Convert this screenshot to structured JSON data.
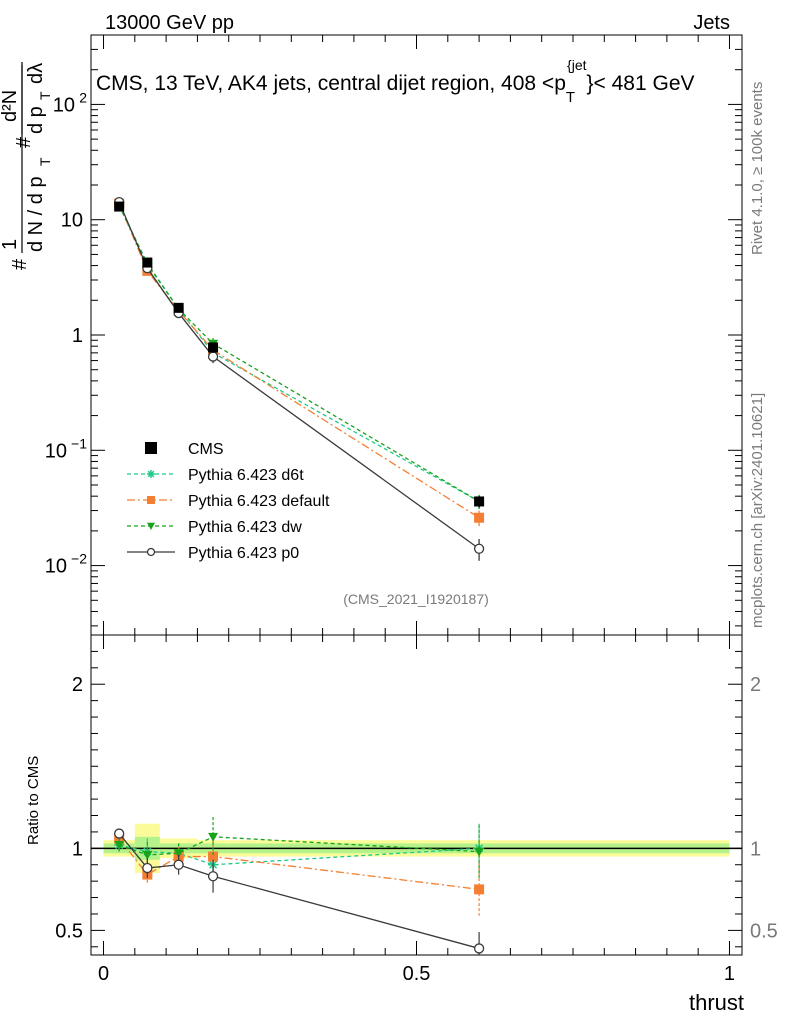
{
  "header": {
    "energy_label": "13000 GeV pp",
    "category_label": "Jets",
    "title": "CMS, 13 TeV, AK4 jets, central dijet region, 408 <p",
    "title_sub": "T",
    "title_sup": "{jet",
    "title_tail": "}< 481 GeV",
    "rivet_label": "Rivet 4.1.0, ≥ 100k events",
    "source_label": "mcplots.cern.ch [arXiv:2401.10621]",
    "analysis_id": "(CMS_2021_I1920187)"
  },
  "chart_data": {
    "type": "line",
    "xlabel": "thrust",
    "ylabel_main": "# 1/(dN/dpT) # d²N/(dpT dλ)",
    "ylabel_ratio": "Ratio to CMS",
    "xlim": [
      -0.02,
      1.02
    ],
    "ylim_main": [
      0.0025,
      400
    ],
    "yscale_main": "log",
    "ylim_ratio": [
      0.35,
      2.3
    ],
    "x_ticks": [
      "0",
      "0.5",
      "1"
    ],
    "x_tick_values": [
      0,
      0.5,
      1
    ],
    "main_y_ticks": [
      {
        "value": 0.01,
        "base": "10",
        "exp": "−2"
      },
      {
        "value": 0.1,
        "base": "10",
        "exp": "−1"
      },
      {
        "value": 1,
        "base": "1",
        "exp": ""
      },
      {
        "value": 10,
        "base": "10",
        "exp": ""
      },
      {
        "value": 100,
        "base": "10",
        "exp": "2"
      }
    ],
    "ratio_y_ticks": [
      {
        "value": 0.5,
        "label": "0.5"
      },
      {
        "value": 1,
        "label": "1"
      },
      {
        "value": 2,
        "label": "2"
      }
    ],
    "bins": [
      [
        0,
        0.05
      ],
      [
        0.05,
        0.09
      ],
      [
        0.09,
        0.15
      ],
      [
        0.15,
        0.2
      ],
      [
        0.2,
        1.0
      ]
    ],
    "x": [
      0.025,
      0.07,
      0.12,
      0.175,
      0.6
    ],
    "data_series": {
      "name": "CMS",
      "color": "#000000",
      "values": [
        13.0,
        4.25,
        1.72,
        0.78,
        0.036
      ],
      "errors": [
        0.5,
        0.25,
        0.1,
        0.08,
        0.004
      ],
      "ratio_band_inner": [
        0.03,
        0.07,
        0.03,
        0.03,
        0.03
      ],
      "ratio_band_outer": [
        0.05,
        0.15,
        0.06,
        0.05,
        0.05
      ]
    },
    "series": [
      {
        "name": "Pythia 6.423 d6t",
        "color": "#1fc98a",
        "dash": "4,3",
        "marker": "star",
        "values": [
          13.2,
          4.2,
          1.68,
          0.7,
          0.036
        ],
        "errors": [
          0.4,
          0.25,
          0.1,
          0.08,
          0.005
        ],
        "ratio": [
          1.02,
          0.98,
          0.97,
          0.9,
          1.0
        ],
        "ratio_err": [
          0.04,
          0.08,
          0.06,
          0.1,
          0.15
        ]
      },
      {
        "name": "Pythia 6.423 default",
        "color": "#f47f33",
        "dash": "8,3,2,3",
        "marker": "square",
        "values": [
          13.8,
          3.6,
          1.62,
          0.74,
          0.026
        ],
        "errors": [
          0.4,
          0.2,
          0.1,
          0.08,
          0.004
        ],
        "ratio": [
          1.06,
          0.84,
          0.95,
          0.95,
          0.75
        ],
        "ratio_err": [
          0.04,
          0.06,
          0.06,
          0.1,
          0.16
        ]
      },
      {
        "name": "Pythia 6.423 dw",
        "color": "#1aa31a",
        "dash": "4,3",
        "marker": "triangle",
        "values": [
          13.3,
          4.1,
          1.68,
          0.84,
          0.036
        ],
        "errors": [
          0.4,
          0.25,
          0.1,
          0.1,
          0.005
        ],
        "ratio": [
          1.02,
          0.96,
          0.97,
          1.07,
          0.98
        ],
        "ratio_err": [
          0.04,
          0.08,
          0.06,
          0.12,
          0.16
        ]
      },
      {
        "name": "Pythia 6.423 p0",
        "color": "#3a3a3a",
        "dash": "",
        "marker": "circle",
        "values": [
          14.2,
          3.8,
          1.55,
          0.65,
          0.014
        ],
        "errors": [
          0.4,
          0.25,
          0.1,
          0.08,
          0.003
        ],
        "ratio": [
          1.09,
          0.88,
          0.9,
          0.83,
          0.39
        ],
        "ratio_err": [
          0.03,
          0.06,
          0.06,
          0.1,
          0.1
        ]
      }
    ],
    "legend": {
      "placement": "lower-left"
    }
  }
}
